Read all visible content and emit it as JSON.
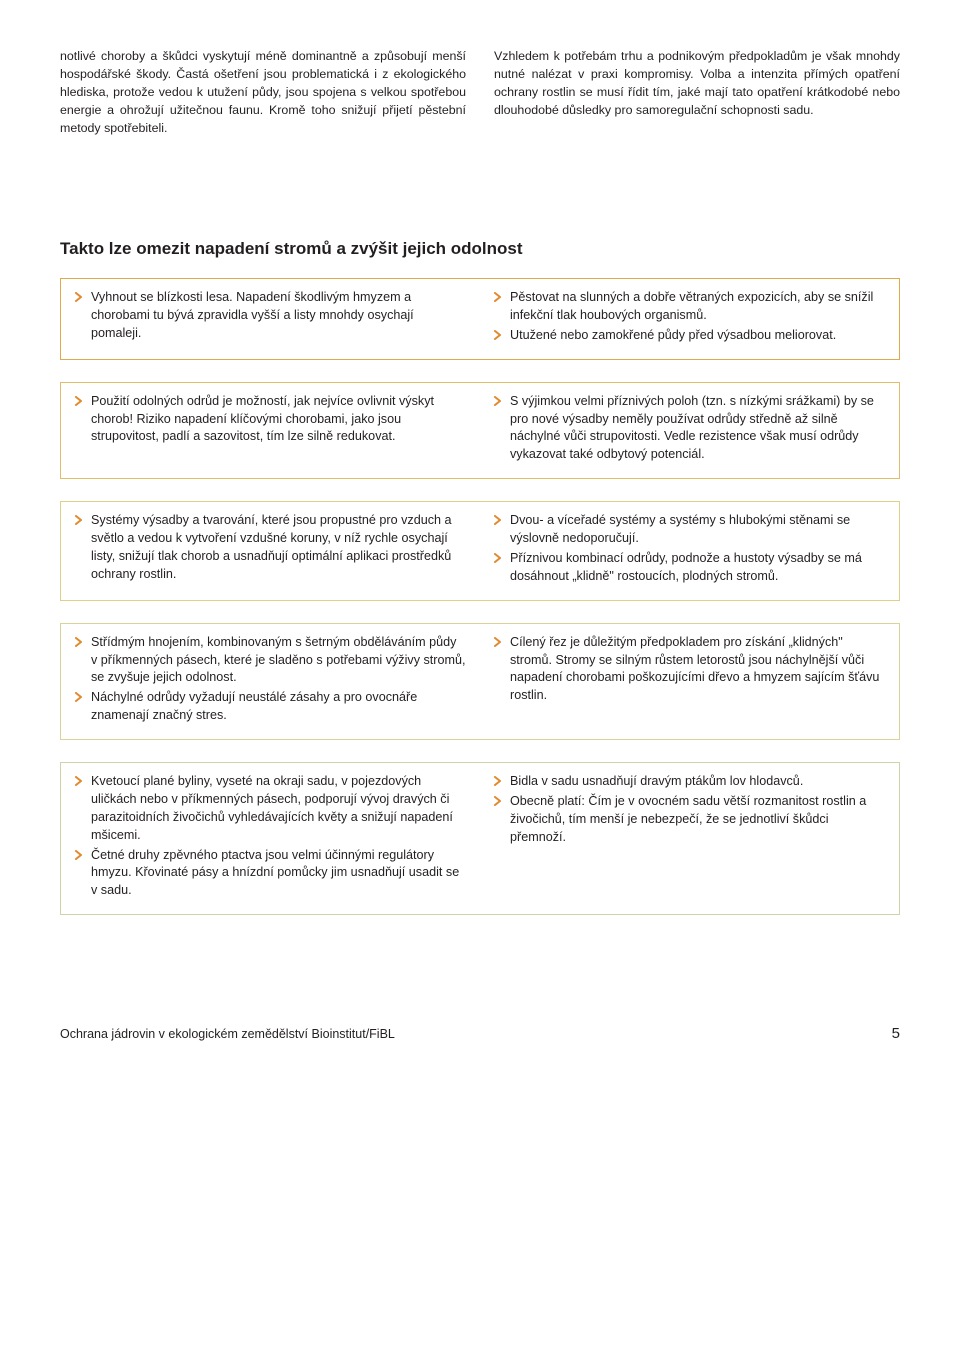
{
  "colors": {
    "text": "#231f20",
    "chevron": "#e08a2d",
    "box_borders": [
      "#dfa94e",
      "#dfbd6b",
      "#dfd089",
      "#d9d39a",
      "#d0d3a8",
      "#c3d2b4"
    ]
  },
  "intro": {
    "left": "notlivé choroby a škůdci vyskytují méně dominantně a způsobují menší hospodářské škody. Častá ošetření jsou problematická i z ekologického hlediska, protože vedou k utužení půdy, jsou spojena s velkou spotřebou energie a ohrožují užitečnou faunu. Kromě toho snižují přijetí pěstební metody spotřebiteli.",
    "right": "Vzhledem k potřebám trhu a podnikovým předpokladům je však mnohdy nutné nalézat v praxi kompromisy. Volba a intenzita přímých opatření ochrany rostlin se musí řídit tím, jaké mají tato opatření krátkodobé nebo dlouhodobé důsledky pro samoregulační schopnosti sadu."
  },
  "section_title": "Takto lze omezit napadení stromů a zvýšit jejich odolnost",
  "boxes": [
    {
      "left": [
        "Vyhnout se blízkosti lesa. Napadení škodlivým hmyzem a chorobami tu bývá zpravidla vyšší a listy mnohdy osychají pomaleji."
      ],
      "right": [
        "Pěstovat na slunných a dobře větraných expozicích, aby se snížil infekční tlak houbových organismů.",
        "Utužené nebo zamokřené půdy před výsadbou meliorovat."
      ]
    },
    {
      "left": [
        "Použití odolných odrůd je možností, jak nejvíce ovlivnit výskyt chorob! Riziko napadení klíčovými chorobami, jako jsou strupovitost, padlí a sazovitost, tím lze silně redukovat."
      ],
      "right": [
        "S výjimkou velmi příznivých poloh (tzn. s nízkými srážkami) by se pro nové výsadby neměly používat odrůdy středně až silně náchylné vůči strupovitosti. Vedle rezistence však musí odrůdy vykazovat také odbytový potenciál."
      ]
    },
    {
      "left": [
        "Systémy výsadby a tvarování, které jsou propustné pro vzduch a světlo a vedou k vytvoření vzdušné koruny, v níž rychle osychají listy, snižují tlak chorob a usnadňují optimální aplikaci prostředků ochrany rostlin."
      ],
      "right": [
        "Dvou- a víceřadé systémy a systémy s hlubokými stěnami se výslovně nedoporučují.",
        "Příznivou kombinací odrůdy, podnože a hustoty výsadby se má dosáhnout „klidně\" rostoucích, plodných stromů."
      ]
    },
    {
      "left": [
        "Střídmým hnojením, kombinovaným s šetrným obděláváním půdy v příkmenných pásech, které je sladěno s potřebami výživy stromů, se zvyšuje jejich odolnost.",
        "Náchylné odrůdy vyžadují neustálé zásahy a pro ovocnáře znamenají značný stres."
      ],
      "right": [
        "Cílený řez je důležitým předpokladem pro získání „klidných\" stromů. Stromy se silným růstem letorostů jsou náchylnější vůči napadení chorobami poškozujícími dřevo a hmyzem sajícím šťávu rostlin."
      ]
    },
    {
      "left": [
        "Kvetoucí plané byliny, vyseté na okraji sadu, v pojezdových uličkách nebo v příkmenných pásech, podporují vývoj dravých či parazitoidních živočichů vyhledávajících květy a snižují napadení mšicemi.",
        "Četné druhy zpěvného ptactva jsou velmi účinnými regulátory hmyzu. Křovinaté pásy a hnízdní pomůcky jim usnadňují usadit se v sadu."
      ],
      "right": [
        "Bidla v sadu usnadňují dravým ptákům lov hlodavců.",
        "Obecně platí: Čím je v ovocném sadu větší rozmanitost rostlin a živočichů, tím menší je nebezpečí, že se jednotliví škůdci přemnoží."
      ]
    }
  ],
  "footer": {
    "left": "Ochrana jádrovin v ekologickém zemědělství    Bioinstitut/FiBL",
    "page": "5"
  }
}
